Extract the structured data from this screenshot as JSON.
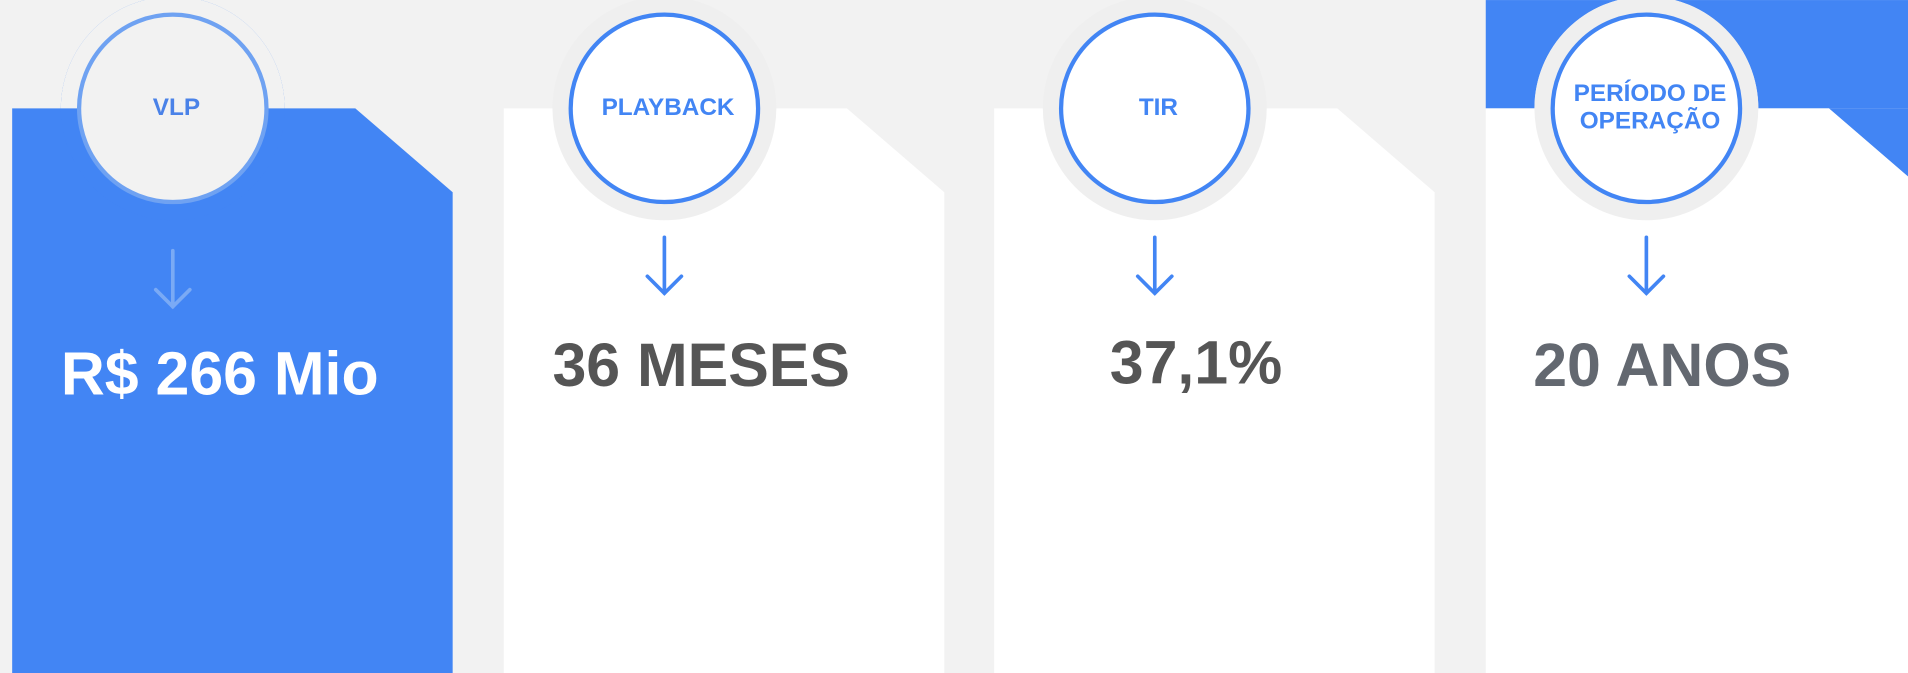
{
  "cards": [
    {
      "label_lines": [
        "VLP"
      ],
      "value": "R$ 266 Mio"
    },
    {
      "label_lines": [
        "PLAYBACK"
      ],
      "value": "36 MESES"
    },
    {
      "label_lines": [
        "TIR"
      ],
      "value": "37,1%"
    },
    {
      "label_lines": [
        "PERÍODO DE",
        "OPERAÇÃO"
      ],
      "value": "20 ANOS"
    }
  ]
}
